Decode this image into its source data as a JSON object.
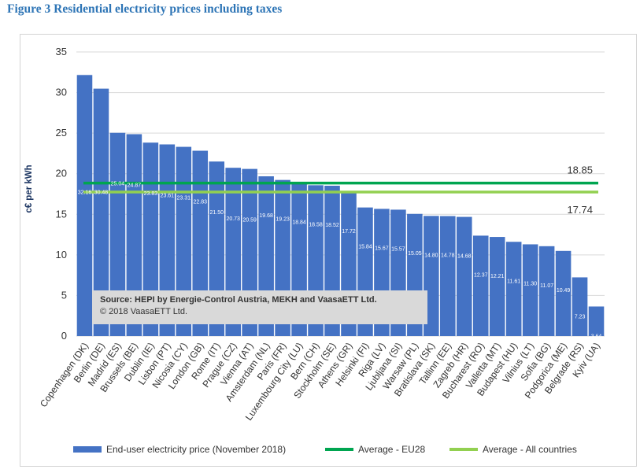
{
  "figure_title": "Figure 3 Residential electricity prices including taxes",
  "source": {
    "line1": "Source: HEPI by Energie-Control Austria, MEKH and VaasaETT Ltd.",
    "line2": "© 2018 VaasaETT Ltd."
  },
  "colors": {
    "bar": "#4472c4",
    "eu28": "#00a550",
    "all": "#92d050",
    "title": "#2e75b6",
    "axis_label": "#1f3864"
  },
  "chart_data": {
    "type": "bar",
    "ylabel": "c€ per kWh",
    "ylim": [
      0,
      35
    ],
    "yticks": [
      "0",
      "5",
      "10",
      "15",
      "20",
      "25",
      "30",
      "35"
    ],
    "grid": true,
    "categories": [
      "Copenhagen (DK)",
      "Berlin (DE)",
      "Madrid (ES)",
      "Brussels (BE)",
      "Dublin (IE)",
      "Lisbon (PT)",
      "Nicosia (CY)",
      "London (GB)",
      "Rome (IT)",
      "Prague (CZ)",
      "Vienna (AT)",
      "Amsterdam (NL)",
      "Paris (FR)",
      "Luxembourg City (LU)",
      "Bern (CH)",
      "Stockholm (SE)",
      "Athens (GR)",
      "Helsinki (FI)",
      "Riga (LV)",
      "Ljubljana (SI)",
      "Warsaw (PL)",
      "Bratislava (SK)",
      "Tallinn (EE)",
      "Zagreb (HR)",
      "Bucharest (RO)",
      "Valletta (MT)",
      "Budapest (HU)",
      "Vilnius (LT)",
      "Sofia (BG)",
      "Podgorica (ME)",
      "Belgrade (RS)",
      "Kyiv (UA)"
    ],
    "series": [
      {
        "name": "End-user electricity price (November 2018)",
        "values": [
          32.16,
          30.48,
          25.04,
          24.87,
          23.83,
          23.61,
          23.31,
          22.83,
          21.5,
          20.73,
          20.59,
          19.68,
          19.23,
          18.84,
          18.58,
          18.52,
          17.72,
          15.84,
          15.67,
          15.57,
          15.05,
          14.8,
          14.78,
          14.68,
          12.37,
          12.21,
          11.61,
          11.3,
          11.07,
          10.49,
          7.23,
          3.64
        ],
        "labels": [
          "32.16",
          "30.48",
          "25.04",
          "24.87",
          "23.83",
          "23.61",
          "23.31",
          "22.83",
          "21.50",
          "20.73",
          "20.59",
          "19.68",
          "19.23",
          "18.84",
          "18.58",
          "18.52",
          "17.72",
          "15.84",
          "15.67",
          "15.57",
          "15.05",
          "14.80",
          "14.78",
          "14.68",
          "12.37",
          "12.21",
          "11.61",
          "11.30",
          "11.07",
          "10.49",
          "7.23",
          "3.64"
        ]
      }
    ],
    "reference_lines": [
      {
        "name": "Average - EU28",
        "value": 18.85,
        "label": "18.85"
      },
      {
        "name": "Average - All countries",
        "value": 17.74,
        "label": "17.74"
      }
    ],
    "legend_position": "bottom"
  }
}
